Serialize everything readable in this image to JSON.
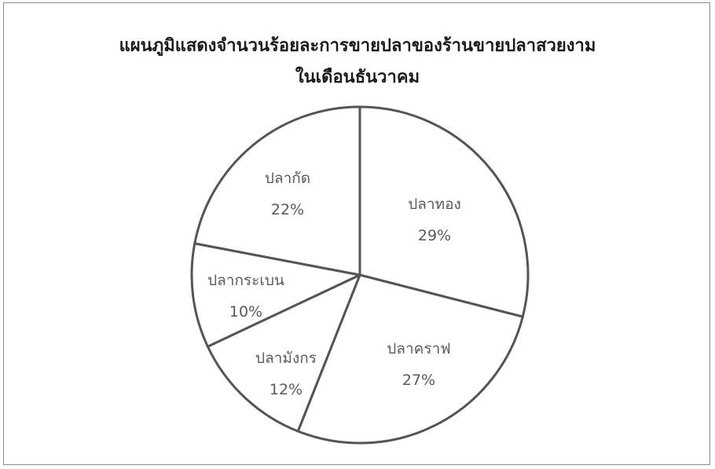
{
  "chart_data": {
    "type": "pie",
    "title_lines": [
      "แผนภูมิแสดงจำนวนร้อยละการขายปลาของร้านขายปลาสวยงาม",
      "ในเดือนธันวาคม"
    ],
    "slices": [
      {
        "label": "ปลาทอง",
        "value": 29,
        "value_text": "29%"
      },
      {
        "label": "ปลาคราฟ",
        "value": 27,
        "value_text": "27%"
      },
      {
        "label": "ปลามังกร",
        "value": 12,
        "value_text": "12%"
      },
      {
        "label": "ปลากระเบน",
        "value": 10,
        "value_text": "10%"
      },
      {
        "label": "ปลากัด",
        "value": 22,
        "value_text": "22%"
      }
    ],
    "unit": "%",
    "legend": "none",
    "slice_fill": "#ffffff",
    "slice_stroke": "#555555"
  }
}
